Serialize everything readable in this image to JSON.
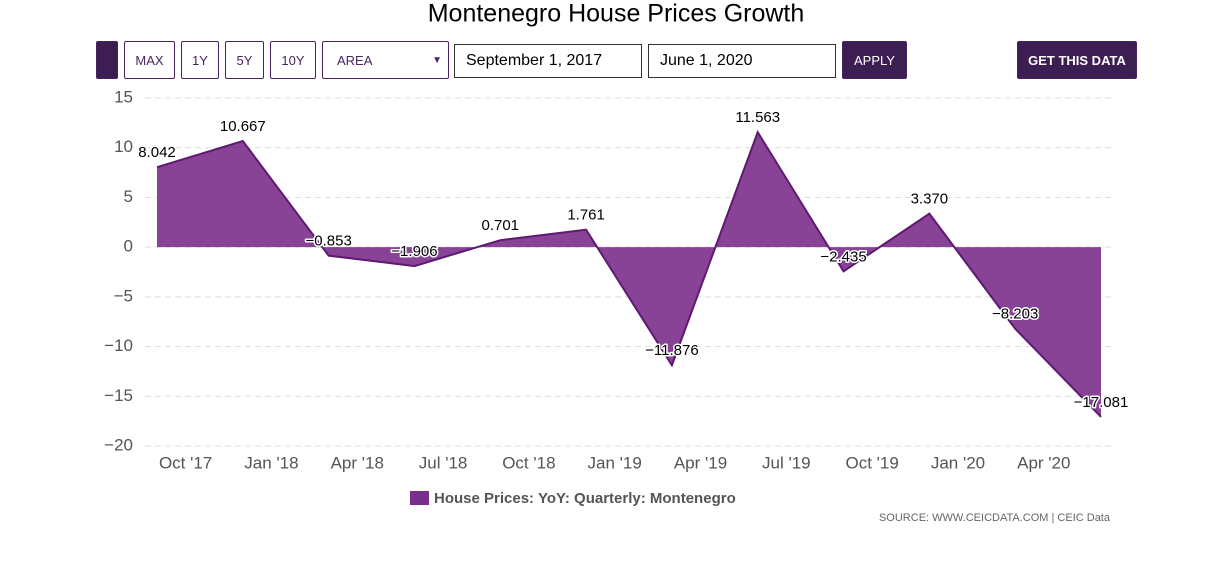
{
  "controls": {
    "buttons": [
      "MAX",
      "1Y",
      "5Y",
      "10Y"
    ],
    "chart_type": "AREA",
    "start_date": "September 1, 2017",
    "end_date": "June 1, 2020",
    "apply": "APPLY",
    "get_data": "GET THIS DATA"
  },
  "chart_data": {
    "type": "area",
    "title": "Montenegro House Prices Growth",
    "x": [
      "2017-09",
      "2017-12",
      "2018-03",
      "2018-06",
      "2018-09",
      "2018-12",
      "2019-03",
      "2019-06",
      "2019-09",
      "2019-12",
      "2020-03",
      "2020-06"
    ],
    "xlim": [
      "2017-09",
      "2020-06"
    ],
    "xticks": [
      {
        "value": "2017-10",
        "label": "Oct '17"
      },
      {
        "value": "2018-01",
        "label": "Jan '18"
      },
      {
        "value": "2018-04",
        "label": "Apr '18"
      },
      {
        "value": "2018-07",
        "label": "Jul '18"
      },
      {
        "value": "2018-10",
        "label": "Oct '18"
      },
      {
        "value": "2019-01",
        "label": "Jan '19"
      },
      {
        "value": "2019-04",
        "label": "Apr '19"
      },
      {
        "value": "2019-07",
        "label": "Jul '19"
      },
      {
        "value": "2019-10",
        "label": "Oct '19"
      },
      {
        "value": "2020-01",
        "label": "Jan '20"
      },
      {
        "value": "2020-04",
        "label": "Apr '20"
      }
    ],
    "ylim": [
      -20,
      15
    ],
    "yticks": [
      {
        "value": -20,
        "label": "−20"
      },
      {
        "value": -15,
        "label": "−15"
      },
      {
        "value": -10,
        "label": "−10"
      },
      {
        "value": -5,
        "label": "−5"
      },
      0,
      5,
      10,
      15
    ],
    "grid": true,
    "series": [
      {
        "name": "House Prices: YoY: Quarterly: Montenegro",
        "color": "#7b2f8c",
        "values": [
          8.042,
          10.667,
          -0.853,
          -1.906,
          0.701,
          1.761,
          -11.876,
          11.563,
          -2.435,
          3.37,
          -8.203,
          -17.081
        ],
        "value_labels": [
          "8.042",
          "10.667",
          "−0.853",
          "−1.906",
          "0.701",
          "1.761",
          "−11.876",
          "11.563",
          "−2.435",
          "3.370",
          "−8.203",
          "−17.081"
        ]
      }
    ],
    "source": "SOURCE: WWW.CEICDATA.COM | CEIC Data"
  }
}
